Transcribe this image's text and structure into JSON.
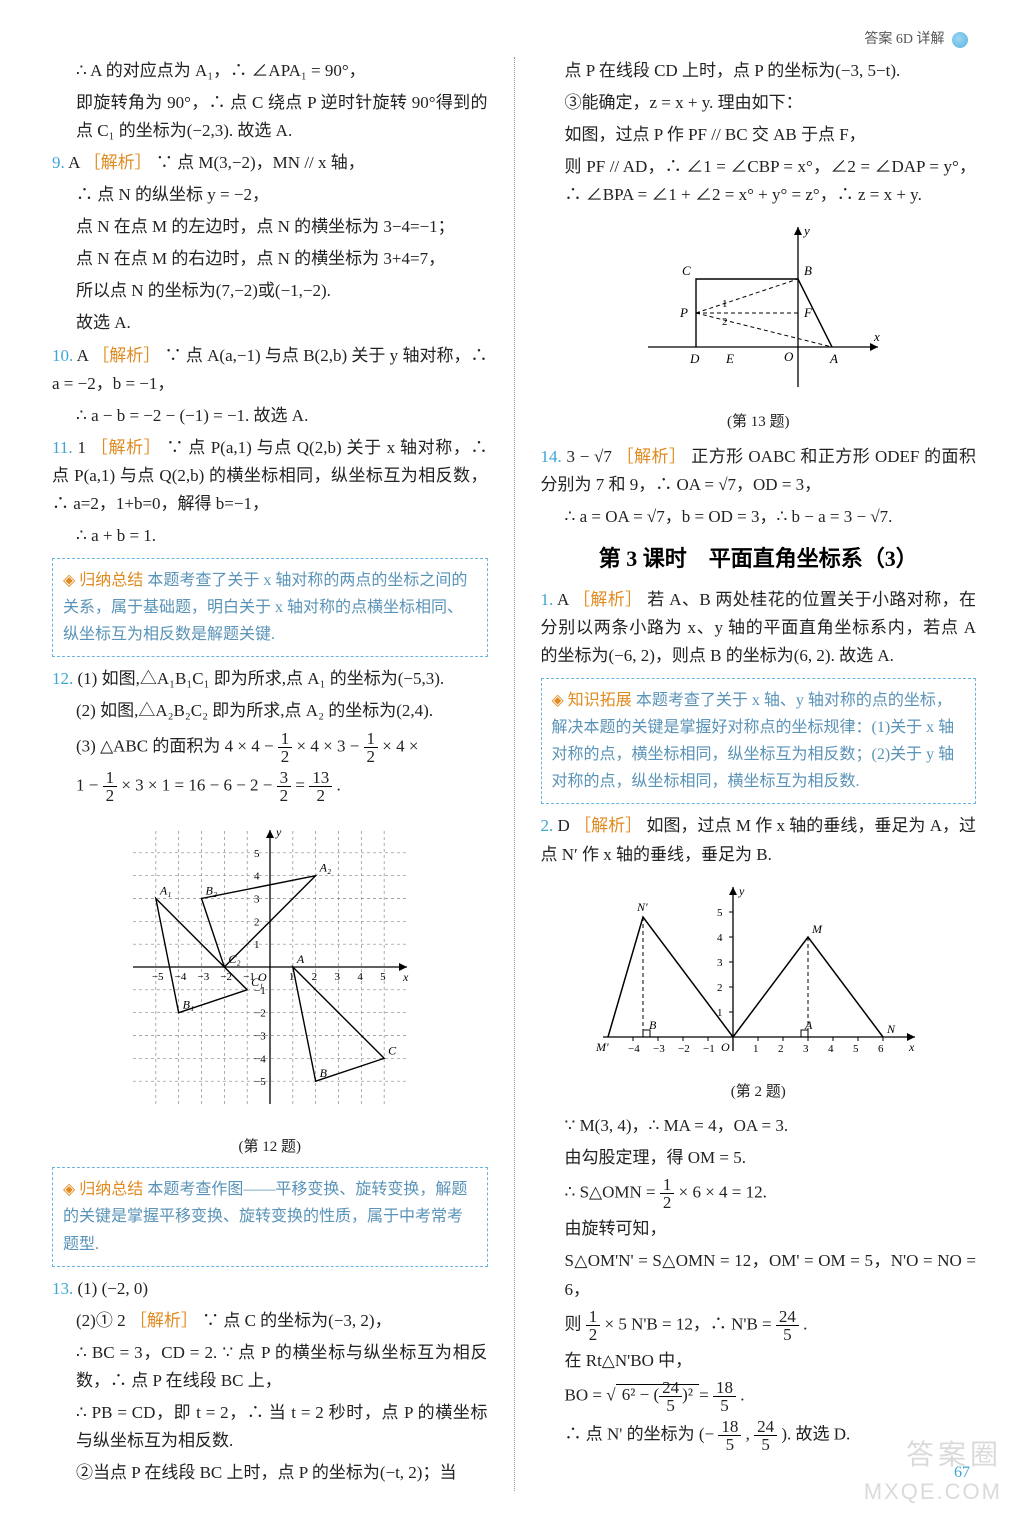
{
  "header": {
    "text": "答案 6D 详解"
  },
  "left": {
    "p1": "∴ A 的对应点为 A₁，∴ ∠APA₁ = 90°，",
    "p2": "即旋转角为 90°，∴ 点 C 绕点 P 逆时针旋转 90°得到的点 C₁ 的坐标为(−2,3). 故选 A.",
    "q9_num": "9.",
    "q9_ans": "A",
    "q9_a": "∵ 点 M(3,−2)，MN // x 轴，",
    "q9_b": "∴ 点 N 的纵坐标 y = −2，",
    "q9_c": "点 N 在点 M 的左边时，点 N 的横坐标为 3−4=−1；",
    "q9_d": "点 N 在点 M 的右边时，点 N 的横坐标为 3+4=7，",
    "q9_e": "所以点 N 的坐标为(7,−2)或(−1,−2).",
    "q9_f": "故选 A.",
    "q10_num": "10.",
    "q10_ans": "A",
    "q10_a": "∵ 点 A(a,−1) 与点 B(2,b) 关于 y 轴对称，∴ a = −2，b = −1，",
    "q10_b": "∴ a − b = −2 − (−1) = −1. 故选 A.",
    "q11_num": "11.",
    "q11_ans": "1",
    "q11_a": "∵ 点 P(a,1) 与点 Q(2,b) 关于 x 轴对称，∴ 点 P(a,1) 与点 Q(2,b) 的横坐标相同，纵坐标互为相反数，∴ a=2，1+b=0，解得 b=−1，",
    "q11_b": "∴ a + b = 1.",
    "box1_title": "◈ 归纳总结",
    "box1": "本题考查了关于 x 轴对称的两点的坐标之间的关系，属于基础题，明白关于 x 轴对称的点横坐标相同、纵坐标互为相反数是解题关键.",
    "q12_num": "12.",
    "q12_1": "(1) 如图,△A₁B₁C₁ 即为所求,点 A₁ 的坐标为(−5,3).",
    "q12_2": "(2) 如图,△A₂B₂C₂ 即为所求,点 A₂ 的坐标为(2,4).",
    "q12_3a": "(3) △ABC 的面积为 4 × 4 −",
    "q12_3b": "× 4 × 3 −",
    "q12_3c": "× 4 ×",
    "q12_3d": "1 −",
    "q12_3e": "× 3 × 1 = 16 − 6 − 2 −",
    "q12_3f": "=",
    "q12_3g": ".",
    "fig12": {
      "caption": "(第 12 题)",
      "grid_color": "#888",
      "axis_color": "#000",
      "bg": "#ffffff",
      "xlim": [
        -6,
        6
      ],
      "ylim": [
        -6,
        6
      ],
      "ticks_x": [
        -5,
        -4,
        -3,
        -2,
        -1,
        1,
        2,
        3,
        4,
        5
      ],
      "ticks_y": [
        -5,
        -4,
        -3,
        -2,
        -1,
        1,
        2,
        3,
        4,
        5
      ],
      "tri_ABC": {
        "color": "#000",
        "A": [
          1,
          0
        ],
        "B": [
          2,
          -5
        ],
        "C": [
          5,
          -4
        ]
      },
      "tri_A1B1C1": {
        "color": "#000",
        "A": [
          -5,
          3
        ],
        "B": [
          -4,
          -2
        ],
        "C": [
          -1,
          -1
        ]
      },
      "tri_A2B2C2": {
        "color": "#000",
        "A": [
          2,
          4
        ],
        "B": [
          -3,
          3
        ],
        "C": [
          -2,
          0
        ]
      },
      "label_fontsize": 12
    },
    "box2_title": "◈ 归纳总结",
    "box2": "本题考查作图——平移变换、旋转变换，解题的关键是掌握平移变换、旋转变换的性质，属于中考常考题型.",
    "q13_num": "13.",
    "q13_1": "(1) (−2, 0)",
    "q13_2a": "(2)① 2",
    "q13_2b": "∵ 点 C 的坐标为(−3, 2)，",
    "q13_2c": "∴ BC = 3，CD = 2. ∵ 点 P 的横坐标与纵坐标互为相反数，∴ 点 P 在线段 BC 上，",
    "q13_2d": "∴ PB = CD，即 t = 2，∴ 当 t = 2 秒时，点 P 的横坐标与纵坐标互为相反数.",
    "q13_2e": "②当点 P 在线段 BC 上时，点 P 的坐标为(−t, 2)；当"
  },
  "right": {
    "p1": "点 P 在线段 CD 上时，点 P 的坐标为(−3, 5−t).",
    "p2": "③能确定，z = x + y. 理由如下：",
    "p3": "如图，过点 P 作 PF // BC 交 AB 于点 F，",
    "p4": "则 PF // AD，∴ ∠1 = ∠CBP = x°，∠2 = ∠DAP = y°，∴ ∠BPA = ∠1 + ∠2 = x° + y° = z°，∴ z = x + y.",
    "fig13": {
      "caption": "(第 13 题)",
      "axis_color": "#000",
      "line_color": "#000",
      "dash_color": "#000",
      "B": [
        0,
        2
      ],
      "C": [
        -3,
        2
      ],
      "D": [
        -3,
        0
      ],
      "E": [
        -2,
        0
      ],
      "O": [
        0,
        0
      ],
      "A": [
        1,
        0
      ],
      "P": [
        -3,
        1
      ],
      "F": [
        0,
        1
      ],
      "label_fontsize": 13
    },
    "q14_num": "14.",
    "q14_ans": "3 − √7",
    "q14_a": "正方形 OABC 和正方形 ODEF 的面积分别为 7 和 9，∴ OA = √7，OD = 3，",
    "q14_b": "∴ a = OA = √7，b = OD = 3，∴ b − a = 3 − √7.",
    "section_title": "第 3 课时　平面直角坐标系（3）",
    "q1_num": "1.",
    "q1_ans": "A",
    "q1_a": "若 A、B 两处桂花的位置关于小路对称，在分别以两条小路为 x、y 轴的平面直角坐标系内，若点 A 的坐标为(−6, 2)，则点 B 的坐标为(6, 2). 故选 A.",
    "box3_title": "◈ 知识拓展",
    "box3": "本题考查了关于 x 轴、y 轴对称的点的坐标，解决本题的关键是掌握好对称点的坐标规律：(1)关于 x 轴对称的点，横坐标相同，纵坐标互为相反数；(2)关于 y 轴对称的点，纵坐标相同，横坐标互为相反数.",
    "q2_num": "2.",
    "q2_ans": "D",
    "q2_a": "如图，过点 M 作 x 轴的垂线，垂足为 A，过点 N′ 作 x 轴的垂线，垂足为 B.",
    "fig2": {
      "caption": "(第 2 题)",
      "axis_color": "#000",
      "line_color": "#000",
      "dash_color": "#000",
      "xlim": [
        -5,
        7
      ],
      "ylim": [
        0,
        6
      ],
      "ticks_x": [
        -4,
        -3,
        -2,
        -1,
        1,
        2,
        3,
        4,
        5,
        6
      ],
      "ticks_y": [
        1,
        2,
        3,
        4,
        5
      ],
      "M": [
        3,
        4
      ],
      "A": [
        3,
        0
      ],
      "O": [
        0,
        0
      ],
      "N": [
        6,
        0
      ],
      "Np": [
        -3.6,
        4.8
      ],
      "B": [
        -3.6,
        0
      ],
      "Mp": [
        -5,
        0
      ],
      "label_fontsize": 12
    },
    "q2_b": "∵ M(3, 4)，∴ MA = 4，OA = 3.",
    "q2_c": "由勾股定理，得 OM = 5.",
    "q2_d1": "∴ S△OMN =",
    "q2_d2": "× 6 × 4 = 12.",
    "q2_e": "由旋转可知，",
    "q2_f": "S△OM'N' = S△OMN = 12，OM' = OM = 5，N'O = NO = 6，",
    "q2_g1": "则",
    "q2_g2": "× 5 N'B = 12，∴ N'B =",
    "q2_g3": ".",
    "q2_h": "在 Rt△N'BO 中，",
    "q2_i1": "BO =",
    "q2_i2": "6² − (",
    "q2_i3": ")²",
    "q2_i4": "=",
    "q2_i5": ".",
    "q2_j1": "∴ 点 N' 的坐标为 (−",
    "q2_j2": ", ",
    "q2_j3": "). 故选 D."
  },
  "analysis_label": "［解析］",
  "page_number": "67"
}
